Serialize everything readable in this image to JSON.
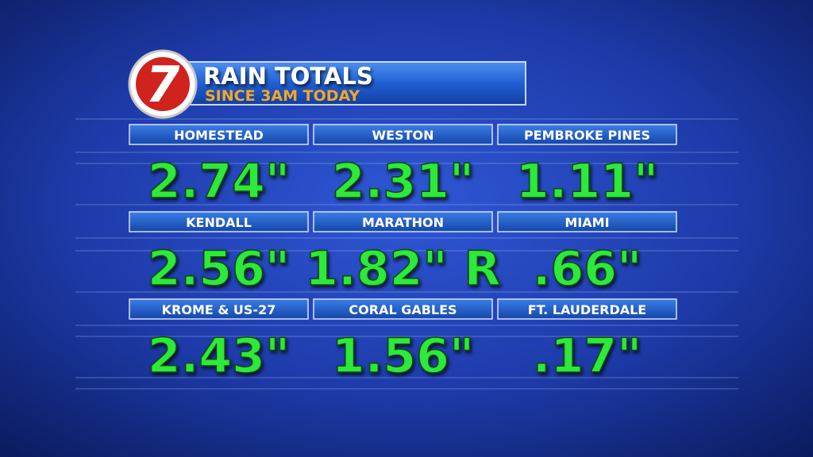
{
  "header": {
    "logo": "7",
    "title": "RAIN TOTALS",
    "subtitle": "SINCE 3AM TODAY"
  },
  "table": {
    "rows": [
      [
        {
          "location": "HOMESTEAD",
          "total": "2.74\""
        },
        {
          "location": "WESTON",
          "total": "2.31\""
        },
        {
          "location": "PEMBROKE PINES",
          "total": "1.11\""
        }
      ],
      [
        {
          "location": "KENDALL",
          "total": "2.56\""
        },
        {
          "location": "MARATHON",
          "total": "1.82\" R"
        },
        {
          "location": "MIAMI",
          "total": ".66\""
        }
      ],
      [
        {
          "location": "KROME & US-27",
          "total": "2.43\""
        },
        {
          "location": "CORAL GABLES",
          "total": "1.56\""
        },
        {
          "location": "FT. LAUDERDALE",
          "total": ".17\""
        }
      ]
    ]
  }
}
